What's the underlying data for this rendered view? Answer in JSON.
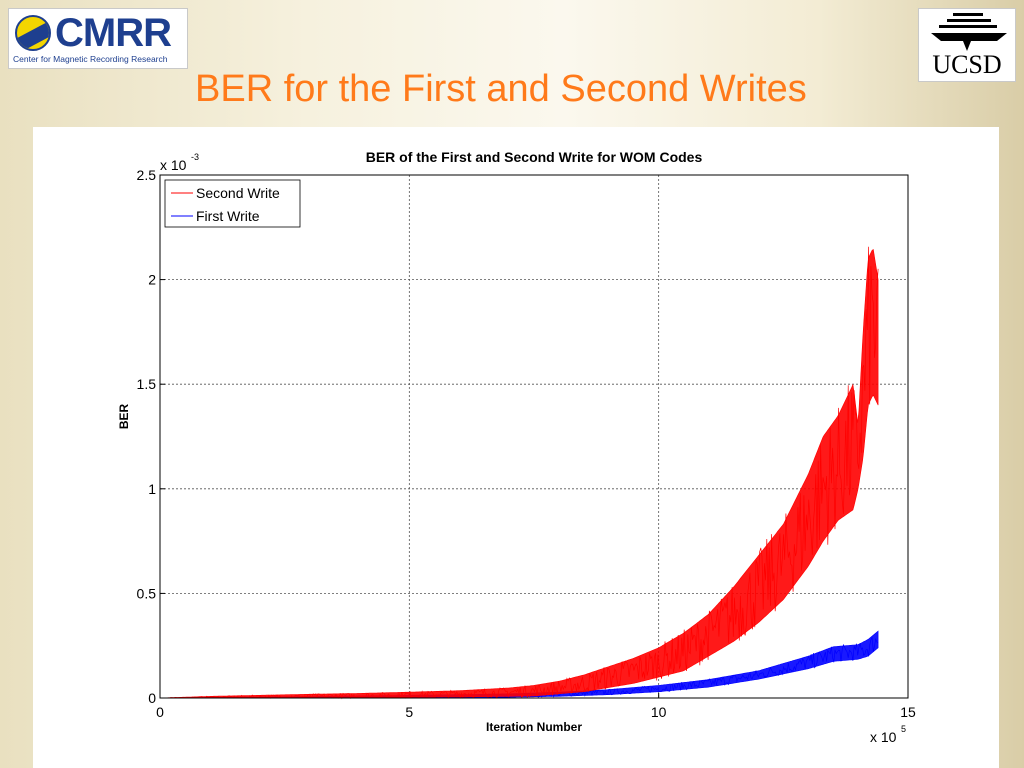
{
  "slide": {
    "title": "BER for the First and Second Writes",
    "logo_left": {
      "name": "CMRR",
      "subtitle": "Center for Magnetic Recording Research"
    },
    "logo_right": {
      "name": "UCSD"
    },
    "title_color": "#ff7a1a"
  },
  "chart_data": {
    "type": "line",
    "title": "BER of the First and Second Write for WOM Codes",
    "xlabel": "Iteration Number",
    "ylabel": "BER",
    "x_multiplier": "x 10",
    "x_exponent": "5",
    "y_multiplier": "x 10",
    "y_exponent": "-3",
    "xlim": [
      0,
      15
    ],
    "ylim": [
      0,
      2.5
    ],
    "xticks": [
      "0",
      "5",
      "10",
      "15"
    ],
    "yticks": [
      "0",
      "0.5",
      "1",
      "1.5",
      "2",
      "2.5"
    ],
    "grid": true,
    "legend_position": "top-left",
    "series": [
      {
        "name": "Second Write",
        "color": "#ff0000",
        "x": [
          0,
          1,
          2,
          3,
          4,
          5,
          6,
          7,
          7.5,
          8,
          8.5,
          9,
          9.5,
          10,
          10.5,
          11,
          11.5,
          12,
          12.5,
          13,
          13.3,
          13.6,
          13.9,
          14.0,
          14.1,
          14.2,
          14.3,
          14.4
        ],
        "values": [
          0,
          0.003,
          0.005,
          0.008,
          0.012,
          0.016,
          0.02,
          0.028,
          0.035,
          0.05,
          0.07,
          0.1,
          0.13,
          0.17,
          0.22,
          0.3,
          0.4,
          0.52,
          0.65,
          0.85,
          1.0,
          1.1,
          1.2,
          1.15,
          1.45,
          1.75,
          1.8,
          1.7
        ],
        "band": [
          0,
          0.005,
          0.008,
          0.01,
          0.01,
          0.012,
          0.015,
          0.02,
          0.025,
          0.03,
          0.04,
          0.05,
          0.06,
          0.07,
          0.09,
          0.1,
          0.13,
          0.16,
          0.18,
          0.22,
          0.25,
          0.25,
          0.3,
          0.15,
          0.3,
          0.35,
          0.35,
          0.3
        ]
      },
      {
        "name": "First Write",
        "color": "#0000ff",
        "x": [
          0,
          1,
          2,
          3,
          4,
          5,
          6,
          7,
          8,
          9,
          10,
          11,
          12,
          12.5,
          13,
          13.5,
          14,
          14.2,
          14.4
        ],
        "values": [
          0,
          0.001,
          0.002,
          0.003,
          0.005,
          0.007,
          0.009,
          0.012,
          0.018,
          0.028,
          0.045,
          0.07,
          0.11,
          0.14,
          0.17,
          0.21,
          0.22,
          0.24,
          0.28
        ],
        "band": [
          0,
          0.002,
          0.003,
          0.004,
          0.005,
          0.006,
          0.007,
          0.008,
          0.01,
          0.012,
          0.015,
          0.018,
          0.02,
          0.025,
          0.03,
          0.035,
          0.035,
          0.04,
          0.04
        ]
      }
    ]
  }
}
